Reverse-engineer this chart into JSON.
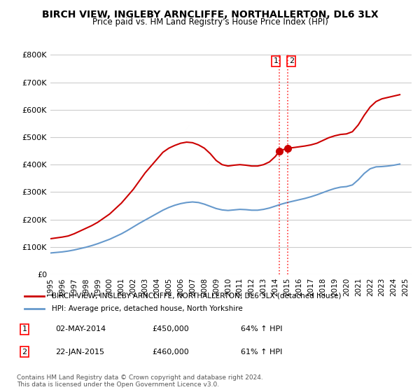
{
  "title": "BIRCH VIEW, INGLEBY ARNCLIFFE, NORTHALLERTON, DL6 3LX",
  "subtitle": "Price paid vs. HM Land Registry's House Price Index (HPI)",
  "title_fontsize": 11,
  "subtitle_fontsize": 9,
  "background_color": "#ffffff",
  "plot_bg_color": "#ffffff",
  "grid_color": "#cccccc",
  "ylim": [
    0,
    800000
  ],
  "yticks": [
    0,
    100000,
    200000,
    300000,
    400000,
    500000,
    600000,
    700000,
    800000
  ],
  "ytick_labels": [
    "£0",
    "£100K",
    "£200K",
    "£300K",
    "£400K",
    "£500K",
    "£600K",
    "£700K",
    "£800K"
  ],
  "xlim_start": 1995.0,
  "xlim_end": 2025.5,
  "red_line_color": "#cc0000",
  "blue_line_color": "#6699cc",
  "marker_color": "#cc0000",
  "sale1_x": 2014.33,
  "sale1_y": 450000,
  "sale2_x": 2015.05,
  "sale2_y": 460000,
  "vline1_x": 2014.33,
  "vline2_x": 2015.05,
  "legend_label_red": "BIRCH VIEW, INGLEBY ARNCLIFFE, NORTHALLERTON, DL6 3LX (detached house)",
  "legend_label_blue": "HPI: Average price, detached house, North Yorkshire",
  "table_entries": [
    {
      "num": "1",
      "date": "02-MAY-2014",
      "price": "£450,000",
      "hpi": "64% ↑ HPI"
    },
    {
      "num": "2",
      "date": "22-JAN-2015",
      "price": "£460,000",
      "hpi": "61% ↑ HPI"
    }
  ],
  "footnote": "Contains HM Land Registry data © Crown copyright and database right 2024.\nThis data is licensed under the Open Government Licence v3.0.",
  "red_x": [
    1995.0,
    1995.5,
    1996.0,
    1996.5,
    1997.0,
    1997.5,
    1998.0,
    1998.5,
    1999.0,
    1999.5,
    2000.0,
    2000.5,
    2001.0,
    2001.5,
    2002.0,
    2002.5,
    2003.0,
    2003.5,
    2004.0,
    2004.5,
    2005.0,
    2005.5,
    2006.0,
    2006.5,
    2007.0,
    2007.5,
    2008.0,
    2008.5,
    2009.0,
    2009.5,
    2010.0,
    2010.5,
    2011.0,
    2011.5,
    2012.0,
    2012.5,
    2013.0,
    2013.5,
    2014.0,
    2014.33,
    2015.05,
    2015.5,
    2016.0,
    2016.5,
    2017.0,
    2017.5,
    2018.0,
    2018.5,
    2019.0,
    2019.5,
    2020.0,
    2020.5,
    2021.0,
    2021.5,
    2022.0,
    2022.5,
    2023.0,
    2023.5,
    2024.0,
    2024.5
  ],
  "red_y": [
    130000,
    133000,
    136000,
    140000,
    148000,
    158000,
    168000,
    178000,
    190000,
    205000,
    220000,
    240000,
    260000,
    285000,
    310000,
    340000,
    370000,
    395000,
    420000,
    445000,
    460000,
    470000,
    478000,
    482000,
    480000,
    472000,
    460000,
    440000,
    415000,
    400000,
    395000,
    398000,
    400000,
    398000,
    395000,
    395000,
    400000,
    410000,
    430000,
    450000,
    460000,
    462000,
    465000,
    468000,
    472000,
    478000,
    488000,
    498000,
    505000,
    510000,
    512000,
    520000,
    545000,
    580000,
    610000,
    630000,
    640000,
    645000,
    650000,
    655000
  ],
  "blue_x": [
    1995.0,
    1995.5,
    1996.0,
    1996.5,
    1997.0,
    1997.5,
    1998.0,
    1998.5,
    1999.0,
    1999.5,
    2000.0,
    2000.5,
    2001.0,
    2001.5,
    2002.0,
    2002.5,
    2003.0,
    2003.5,
    2004.0,
    2004.5,
    2005.0,
    2005.5,
    2006.0,
    2006.5,
    2007.0,
    2007.5,
    2008.0,
    2008.5,
    2009.0,
    2009.5,
    2010.0,
    2010.5,
    2011.0,
    2011.5,
    2012.0,
    2012.5,
    2013.0,
    2013.5,
    2014.0,
    2014.5,
    2015.0,
    2015.5,
    2016.0,
    2016.5,
    2017.0,
    2017.5,
    2018.0,
    2018.5,
    2019.0,
    2019.5,
    2020.0,
    2020.5,
    2021.0,
    2021.5,
    2022.0,
    2022.5,
    2023.0,
    2023.5,
    2024.0,
    2024.5
  ],
  "blue_y": [
    78000,
    80000,
    82000,
    85000,
    89000,
    94000,
    99000,
    105000,
    112000,
    120000,
    128000,
    138000,
    148000,
    160000,
    173000,
    186000,
    198000,
    210000,
    222000,
    234000,
    244000,
    252000,
    258000,
    262000,
    264000,
    262000,
    256000,
    248000,
    240000,
    235000,
    233000,
    235000,
    237000,
    236000,
    234000,
    234000,
    237000,
    242000,
    249000,
    256000,
    262000,
    267000,
    272000,
    277000,
    283000,
    290000,
    298000,
    306000,
    313000,
    318000,
    320000,
    326000,
    345000,
    368000,
    385000,
    392000,
    393000,
    395000,
    398000,
    402000
  ]
}
